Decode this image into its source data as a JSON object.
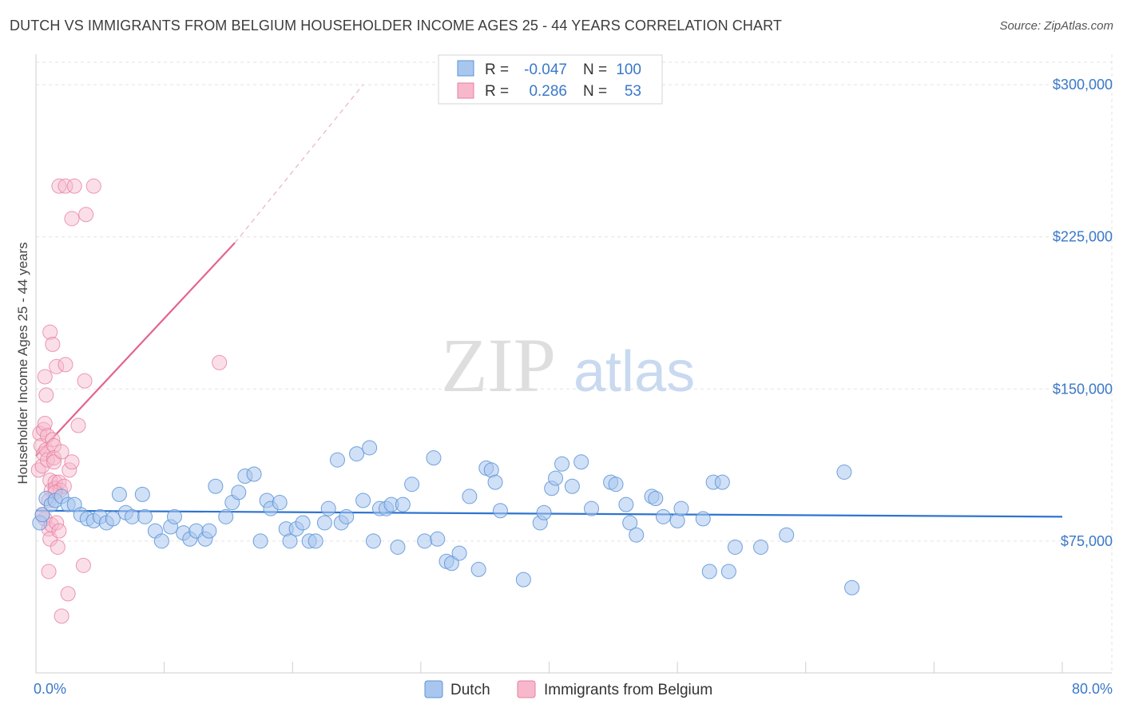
{
  "header": {
    "title": "DUTCH VS IMMIGRANTS FROM BELGIUM HOUSEHOLDER INCOME AGES 25 - 44 YEARS CORRELATION CHART",
    "source": "Source: ZipAtlas.com"
  },
  "watermark": {
    "zip": "ZIP",
    "atlas": "atlas"
  },
  "colors": {
    "dutch_fill": "#a9c7ee",
    "dutch_stroke": "#5b93d6",
    "dutch_line": "#2f74d0",
    "belgium_fill": "#f7b8cb",
    "belgium_stroke": "#e77fa0",
    "belgium_line": "#e3648e",
    "accent_text": "#3a78c9",
    "grid": "#e3e3e3"
  },
  "legend": {
    "rows": [
      {
        "r_label": "R =",
        "r_value": "-0.047",
        "n_label": "N =",
        "n_value": "100"
      },
      {
        "r_label": "R =",
        "r_value": "0.286",
        "n_label": "N =",
        "n_value": "53"
      }
    ]
  },
  "bottom_legend": {
    "dutch": "Dutch",
    "belgium": "Immigrants from Belgium"
  },
  "chart_data": {
    "type": "scatter",
    "title": "DUTCH VS IMMIGRANTS FROM BELGIUM HOUSEHOLDER INCOME AGES 25 - 44 YEARS CORRELATION CHART",
    "xlabel": "",
    "ylabel": "Householder Income Ages 25 - 44 years",
    "xlim": [
      0,
      80
    ],
    "ylim": [
      10000,
      315000
    ],
    "x_tick_labels": [
      "0.0%",
      "80.0%"
    ],
    "y_ticks": [
      75000,
      150000,
      225000,
      300000
    ],
    "y_tick_labels": [
      "$75,000",
      "$150,000",
      "$225,000",
      "$300,000"
    ],
    "grid": true,
    "legend_position": "top-center",
    "series": [
      {
        "name": "Dutch",
        "r": -0.047,
        "n": 100,
        "trend": {
          "x": [
            0,
            80
          ],
          "y": [
            90000,
            87000
          ]
        },
        "points": [
          [
            0.3,
            84000
          ],
          [
            0.5,
            88000
          ],
          [
            0.8,
            96000
          ],
          [
            1.2,
            93000
          ],
          [
            1.5,
            95000
          ],
          [
            2.0,
            97000
          ],
          [
            2.5,
            93000
          ],
          [
            3.0,
            93000
          ],
          [
            3.5,
            88000
          ],
          [
            4.0,
            86000
          ],
          [
            4.5,
            85000
          ],
          [
            5.0,
            87000
          ],
          [
            5.5,
            84000
          ],
          [
            6.0,
            86000
          ],
          [
            6.5,
            98000
          ],
          [
            7.0,
            89000
          ],
          [
            7.5,
            87000
          ],
          [
            8.3,
            98000
          ],
          [
            8.5,
            87000
          ],
          [
            9.3,
            80000
          ],
          [
            9.8,
            75000
          ],
          [
            10.5,
            82000
          ],
          [
            10.8,
            87000
          ],
          [
            11.5,
            79000
          ],
          [
            12.0,
            76000
          ],
          [
            12.5,
            80000
          ],
          [
            13.2,
            76000
          ],
          [
            13.5,
            80000
          ],
          [
            14.0,
            102000
          ],
          [
            14.8,
            87000
          ],
          [
            15.3,
            94000
          ],
          [
            15.8,
            99000
          ],
          [
            16.3,
            107000
          ],
          [
            17.0,
            108000
          ],
          [
            17.5,
            75000
          ],
          [
            18.0,
            95000
          ],
          [
            18.3,
            91000
          ],
          [
            19.0,
            94000
          ],
          [
            19.5,
            81000
          ],
          [
            19.8,
            75000
          ],
          [
            20.3,
            81000
          ],
          [
            20.8,
            84000
          ],
          [
            21.3,
            75000
          ],
          [
            21.8,
            75000
          ],
          [
            22.5,
            84000
          ],
          [
            22.8,
            91000
          ],
          [
            23.5,
            115000
          ],
          [
            23.8,
            84000
          ],
          [
            24.2,
            87000
          ],
          [
            25.0,
            118000
          ],
          [
            25.5,
            95000
          ],
          [
            26.0,
            121000
          ],
          [
            26.3,
            75000
          ],
          [
            26.8,
            91000
          ],
          [
            27.3,
            91000
          ],
          [
            27.7,
            93000
          ],
          [
            28.2,
            72000
          ],
          [
            28.6,
            93000
          ],
          [
            29.3,
            103000
          ],
          [
            30.3,
            75000
          ],
          [
            31.0,
            116000
          ],
          [
            31.3,
            76000
          ],
          [
            32.0,
            65000
          ],
          [
            32.4,
            64000
          ],
          [
            33.0,
            69000
          ],
          [
            33.8,
            97000
          ],
          [
            34.5,
            61000
          ],
          [
            35.1,
            111000
          ],
          [
            35.5,
            110000
          ],
          [
            35.8,
            104000
          ],
          [
            36.2,
            90000
          ],
          [
            38.0,
            56000
          ],
          [
            39.3,
            84000
          ],
          [
            39.6,
            89000
          ],
          [
            40.2,
            101000
          ],
          [
            40.5,
            106000
          ],
          [
            41.0,
            113000
          ],
          [
            41.8,
            102000
          ],
          [
            42.5,
            114000
          ],
          [
            43.3,
            91000
          ],
          [
            44.8,
            104000
          ],
          [
            45.2,
            103000
          ],
          [
            46.0,
            93000
          ],
          [
            46.3,
            84000
          ],
          [
            46.8,
            78000
          ],
          [
            48.0,
            97000
          ],
          [
            48.3,
            96000
          ],
          [
            48.9,
            87000
          ],
          [
            50.0,
            85000
          ],
          [
            50.3,
            91000
          ],
          [
            52.0,
            86000
          ],
          [
            52.5,
            60000
          ],
          [
            52.8,
            104000
          ],
          [
            53.5,
            104000
          ],
          [
            54.0,
            60000
          ],
          [
            54.5,
            72000
          ],
          [
            56.5,
            72000
          ],
          [
            58.5,
            78000
          ],
          [
            63.0,
            109000
          ],
          [
            63.6,
            52000
          ]
        ]
      },
      {
        "name": "Immigrants from Belgium",
        "r": 0.286,
        "n": 53,
        "trend": {
          "x": [
            0,
            15.5
          ],
          "y": [
            117000,
            222000
          ]
        },
        "trend_dashed": {
          "x": [
            15.5,
            25.5
          ],
          "y": [
            222000,
            300000
          ]
        },
        "points": [
          [
            0.2,
            110000
          ],
          [
            0.3,
            128000
          ],
          [
            0.4,
            122000
          ],
          [
            0.5,
            112000
          ],
          [
            0.6,
            118000
          ],
          [
            0.6,
            130000
          ],
          [
            0.7,
            133000
          ],
          [
            0.7,
            156000
          ],
          [
            0.7,
            86000
          ],
          [
            0.8,
            147000
          ],
          [
            0.8,
            120000
          ],
          [
            0.9,
            115000
          ],
          [
            0.9,
            127000
          ],
          [
            1.0,
            81000
          ],
          [
            1.0,
            60000
          ],
          [
            1.1,
            76000
          ],
          [
            1.1,
            105000
          ],
          [
            1.1,
            178000
          ],
          [
            1.2,
            83000
          ],
          [
            1.2,
            100000
          ],
          [
            1.3,
            125000
          ],
          [
            1.3,
            172000
          ],
          [
            1.4,
            122000
          ],
          [
            1.4,
            116000
          ],
          [
            1.4,
            114000
          ],
          [
            1.5,
            104000
          ],
          [
            1.5,
            101000
          ],
          [
            1.6,
            161000
          ],
          [
            1.6,
            84000
          ],
          [
            1.7,
            72000
          ],
          [
            1.8,
            80000
          ],
          [
            1.8,
            104000
          ],
          [
            1.8,
            250000
          ],
          [
            1.9,
            100000
          ],
          [
            2.0,
            119000
          ],
          [
            2.0,
            38000
          ],
          [
            2.2,
            102000
          ],
          [
            2.3,
            250000
          ],
          [
            2.3,
            162000
          ],
          [
            2.5,
            49000
          ],
          [
            2.6,
            110000
          ],
          [
            2.8,
            114000
          ],
          [
            2.8,
            234000
          ],
          [
            3.0,
            250000
          ],
          [
            3.3,
            132000
          ],
          [
            3.7,
            63000
          ],
          [
            3.8,
            154000
          ],
          [
            3.9,
            236000
          ],
          [
            4.5,
            250000
          ],
          [
            14.3,
            163000
          ],
          [
            0.5,
            88000
          ],
          [
            1.0,
            95000
          ],
          [
            1.5,
            99000
          ]
        ]
      }
    ]
  }
}
